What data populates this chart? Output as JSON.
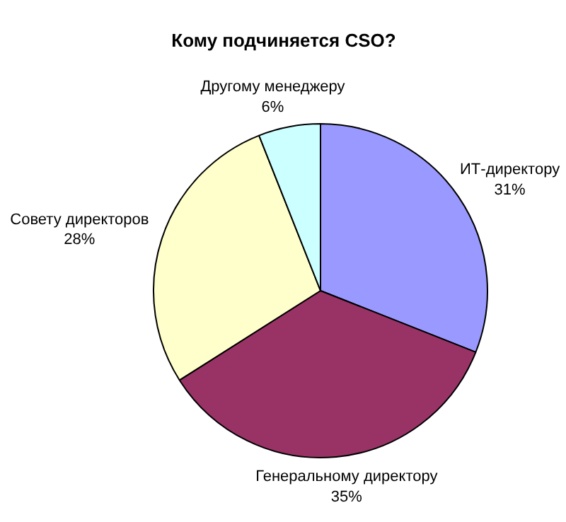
{
  "chart_data": {
    "type": "pie",
    "title": "Кому подчиняется CSO?",
    "categories": [
      "ИТ-директору",
      "Генеральному директору",
      "Совету директоров",
      "Другому менеджеру"
    ],
    "values": [
      31,
      35,
      28,
      6
    ],
    "value_labels": [
      "31%",
      "35%",
      "28%",
      "6%"
    ],
    "colors": [
      "#9999ff",
      "#993366",
      "#ffffcc",
      "#ccffff"
    ]
  }
}
